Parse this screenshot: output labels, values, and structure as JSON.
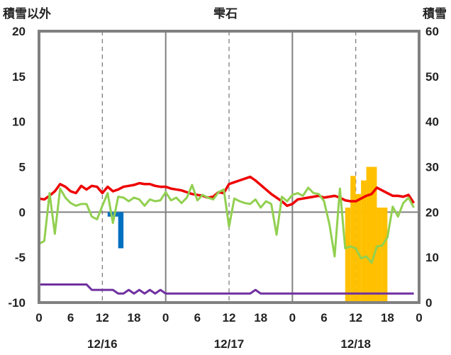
{
  "chart_data": {
    "type": "line",
    "title": "雫石",
    "ylabel_left": "積雪以外",
    "ylabel_right": "積雪",
    "ylim_left": [
      -10,
      20
    ],
    "ylim_right": [
      0,
      60
    ],
    "y_ticks_left": [
      "20",
      "15",
      "10",
      "5",
      "0",
      "-5",
      "-10"
    ],
    "y_ticks_right": [
      "60",
      "50",
      "40",
      "30",
      "20",
      "10",
      "0"
    ],
    "x_ticks": [
      "0",
      "6",
      "12",
      "18",
      "0",
      "6",
      "12",
      "18",
      "0",
      "6",
      "12",
      "18",
      "0"
    ],
    "date_labels": [
      "12/16",
      "12/17",
      "12/18"
    ],
    "x_range_hours": [
      0,
      72
    ],
    "grid": true,
    "colors": {
      "red": "#ee0000",
      "green": "#92d050",
      "purple": "#7030a0",
      "blue": "#0070c0",
      "orange": "#ffc000",
      "frame": "#808080"
    },
    "series": [
      {
        "color": "red",
        "axis": "left",
        "kind": "line",
        "x": [
          0,
          1,
          2,
          3,
          4,
          5,
          6,
          7,
          8,
          9,
          10,
          11,
          12,
          13,
          14,
          15,
          16,
          17,
          18,
          19,
          20,
          21,
          22,
          23,
          24,
          25,
          26,
          27,
          28,
          29,
          30,
          31,
          32,
          33,
          34,
          35,
          36,
          37,
          38,
          39,
          40,
          41,
          42,
          43,
          44,
          45,
          46,
          47,
          48,
          49,
          50,
          51,
          52,
          53,
          54,
          55,
          56,
          57,
          58,
          59,
          60,
          61,
          62,
          63,
          64,
          65,
          66,
          67,
          68,
          69,
          70,
          71
        ],
        "values": [
          1.5,
          1.4,
          1.8,
          2.3,
          3.1,
          2.8,
          2.3,
          2.1,
          2.9,
          2.5,
          2.9,
          2.8,
          2.1,
          2.8,
          2.3,
          2.5,
          2.8,
          2.9,
          3.0,
          3.2,
          3.1,
          3.1,
          2.9,
          2.8,
          2.8,
          2.6,
          2.5,
          2.4,
          2.2,
          2.0,
          1.9,
          1.8,
          1.6,
          1.7,
          2.2,
          2.1,
          3.1,
          3.3,
          3.5,
          3.7,
          3.9,
          3.5,
          3.0,
          2.5,
          2.0,
          1.6,
          1.2,
          0.7,
          0.9,
          1.4,
          1.5,
          1.6,
          1.7,
          1.8,
          1.6,
          1.7,
          1.8,
          1.6,
          1.3,
          1.2,
          1.2,
          1.5,
          1.8,
          2.0,
          2.7,
          2.4,
          2.1,
          1.8,
          1.8,
          1.7,
          1.9,
          1.0
        ]
      },
      {
        "color": "green",
        "axis": "left",
        "kind": "line",
        "x": [
          0,
          1,
          2,
          3,
          4,
          5,
          6,
          7,
          8,
          9,
          10,
          11,
          12,
          13,
          14,
          15,
          16,
          17,
          18,
          19,
          20,
          21,
          22,
          23,
          24,
          25,
          26,
          27,
          28,
          29,
          30,
          31,
          32,
          33,
          34,
          35,
          36,
          37,
          38,
          39,
          40,
          41,
          42,
          43,
          44,
          45,
          46,
          47,
          48,
          49,
          50,
          51,
          52,
          53,
          54,
          55,
          56,
          57,
          58,
          59,
          60,
          61,
          62,
          63,
          64,
          65,
          66,
          67,
          68,
          69,
          70,
          71
        ],
        "values": [
          -3.5,
          -3.2,
          2.1,
          -2.4,
          2.6,
          1.6,
          1.0,
          0.7,
          0.9,
          0.9,
          -0.5,
          -0.8,
          0.7,
          2.1,
          -1.2,
          1.7,
          1.6,
          1.2,
          1.6,
          1.4,
          0.7,
          1.4,
          1.2,
          1.3,
          2.2,
          1.3,
          1.6,
          1.0,
          1.6,
          3.0,
          1.3,
          1.9,
          1.6,
          1.4,
          2.2,
          2.5,
          -1.6,
          1.5,
          1.2,
          1.0,
          0.9,
          1.4,
          0.5,
          1.2,
          0.9,
          -2.5,
          1.7,
          1.2,
          1.9,
          2.1,
          1.8,
          2.7,
          2.1,
          2.0,
          1.2,
          -1.3,
          -4.9,
          2.6,
          -4.0,
          -3.8,
          -4.0,
          -5.1,
          -4.9,
          -5.6,
          -3.8,
          -3.7,
          -2.8,
          0.6,
          -0.5,
          1.0,
          1.6,
          0.5
        ]
      },
      {
        "color": "purple",
        "axis": "left",
        "kind": "line",
        "x": [
          0,
          1,
          2,
          3,
          4,
          5,
          6,
          7,
          8,
          9,
          10,
          11,
          12,
          13,
          14,
          15,
          16,
          17,
          18,
          19,
          20,
          21,
          22,
          23,
          24,
          25,
          26,
          27,
          28,
          29,
          30,
          31,
          32,
          33,
          34,
          35,
          36,
          37,
          38,
          39,
          40,
          41,
          42,
          43,
          44,
          45,
          46,
          47,
          48,
          49,
          50,
          51,
          52,
          53,
          54,
          55,
          56,
          57,
          58,
          59,
          60,
          61,
          62,
          63,
          64,
          65,
          66,
          67,
          68,
          69,
          70,
          71
        ],
        "values": [
          -8,
          -8,
          -8,
          -8,
          -8,
          -8,
          -8,
          -8,
          -8,
          -8,
          -8.6,
          -8.6,
          -8.6,
          -8.6,
          -8.6,
          -9.0,
          -9.0,
          -8.6,
          -9.0,
          -8.6,
          -9.0,
          -8.6,
          -9.0,
          -8.6,
          -9.0,
          -9.0,
          -9.0,
          -9.0,
          -9.0,
          -9.0,
          -9.0,
          -9.0,
          -9.0,
          -9.0,
          -9.0,
          -9.0,
          -9.0,
          -9.0,
          -9.0,
          -9.0,
          -9.0,
          -8.6,
          -9.0,
          -9.0,
          -9.0,
          -9.0,
          -9.0,
          -9.0,
          -9.0,
          -9.0,
          -9.0,
          -9.0,
          -9.0,
          -9.0,
          -9.0,
          -9.0,
          -9.0,
          -9.0,
          -9.0,
          -9.0,
          -9.0,
          -9.0,
          -9.0,
          -9.0,
          -9.0,
          -9.0,
          -9.0,
          -9.0,
          -9.0,
          -9.0,
          -9.0,
          -9.0
        ]
      },
      {
        "color": "blue",
        "axis": "left",
        "kind": "bar",
        "x": [
          13,
          14,
          15
        ],
        "values": [
          -0.5,
          -0.5,
          -4.0
        ]
      },
      {
        "color": "orange",
        "axis": "right",
        "kind": "bar",
        "x": [
          58,
          59,
          60,
          61,
          62,
          63,
          64,
          65
        ],
        "values": [
          21,
          28,
          24,
          27,
          30,
          30,
          21,
          21
        ]
      }
    ]
  }
}
